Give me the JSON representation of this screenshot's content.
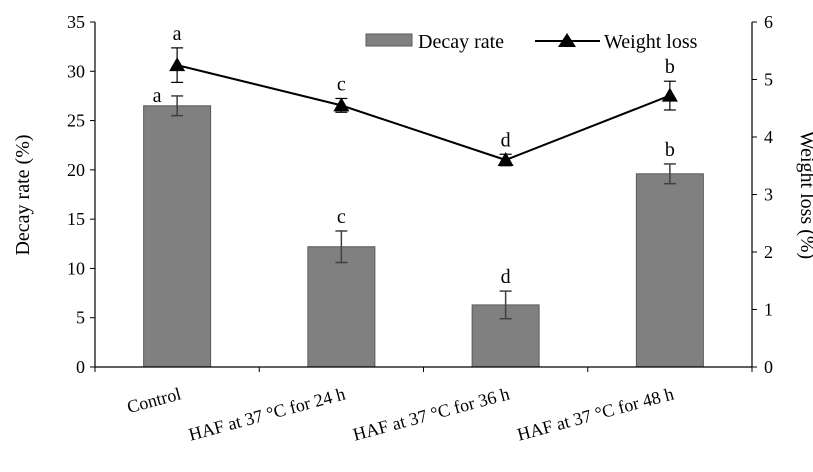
{
  "chart_data": {
    "type": "bar",
    "categories": [
      "Control",
      "HAF at 37 °C for 24 h",
      "HAF at 37 °C for 36 h",
      "HAF at 37 °C for 48 h"
    ],
    "series": [
      {
        "name": "Decay rate",
        "type": "bar",
        "axis": "left",
        "values": [
          26.5,
          12.2,
          6.3,
          19.6
        ],
        "errors": [
          1.0,
          1.6,
          1.4,
          1.0
        ],
        "significance": [
          "a",
          "c",
          "d",
          "b"
        ],
        "color": "#808080"
      },
      {
        "name": "Weight loss",
        "type": "line",
        "axis": "right",
        "marker": "triangle",
        "values": [
          5.25,
          4.55,
          3.6,
          4.72
        ],
        "errors": [
          0.3,
          0.12,
          0.1,
          0.25
        ],
        "significance": [
          "a",
          "c",
          "d",
          "b"
        ],
        "color": "#000000"
      }
    ],
    "ylabel": "Decay rate (%)",
    "y2label": "Weight loss (%)",
    "ylim": [
      0,
      35
    ],
    "y2lim": [
      0,
      6
    ],
    "yticks": [
      0,
      5,
      10,
      15,
      20,
      25,
      30,
      35
    ],
    "y2ticks": [
      0,
      1,
      2,
      3,
      4,
      5,
      6
    ],
    "legend_position": "top-right",
    "grid": false
  }
}
